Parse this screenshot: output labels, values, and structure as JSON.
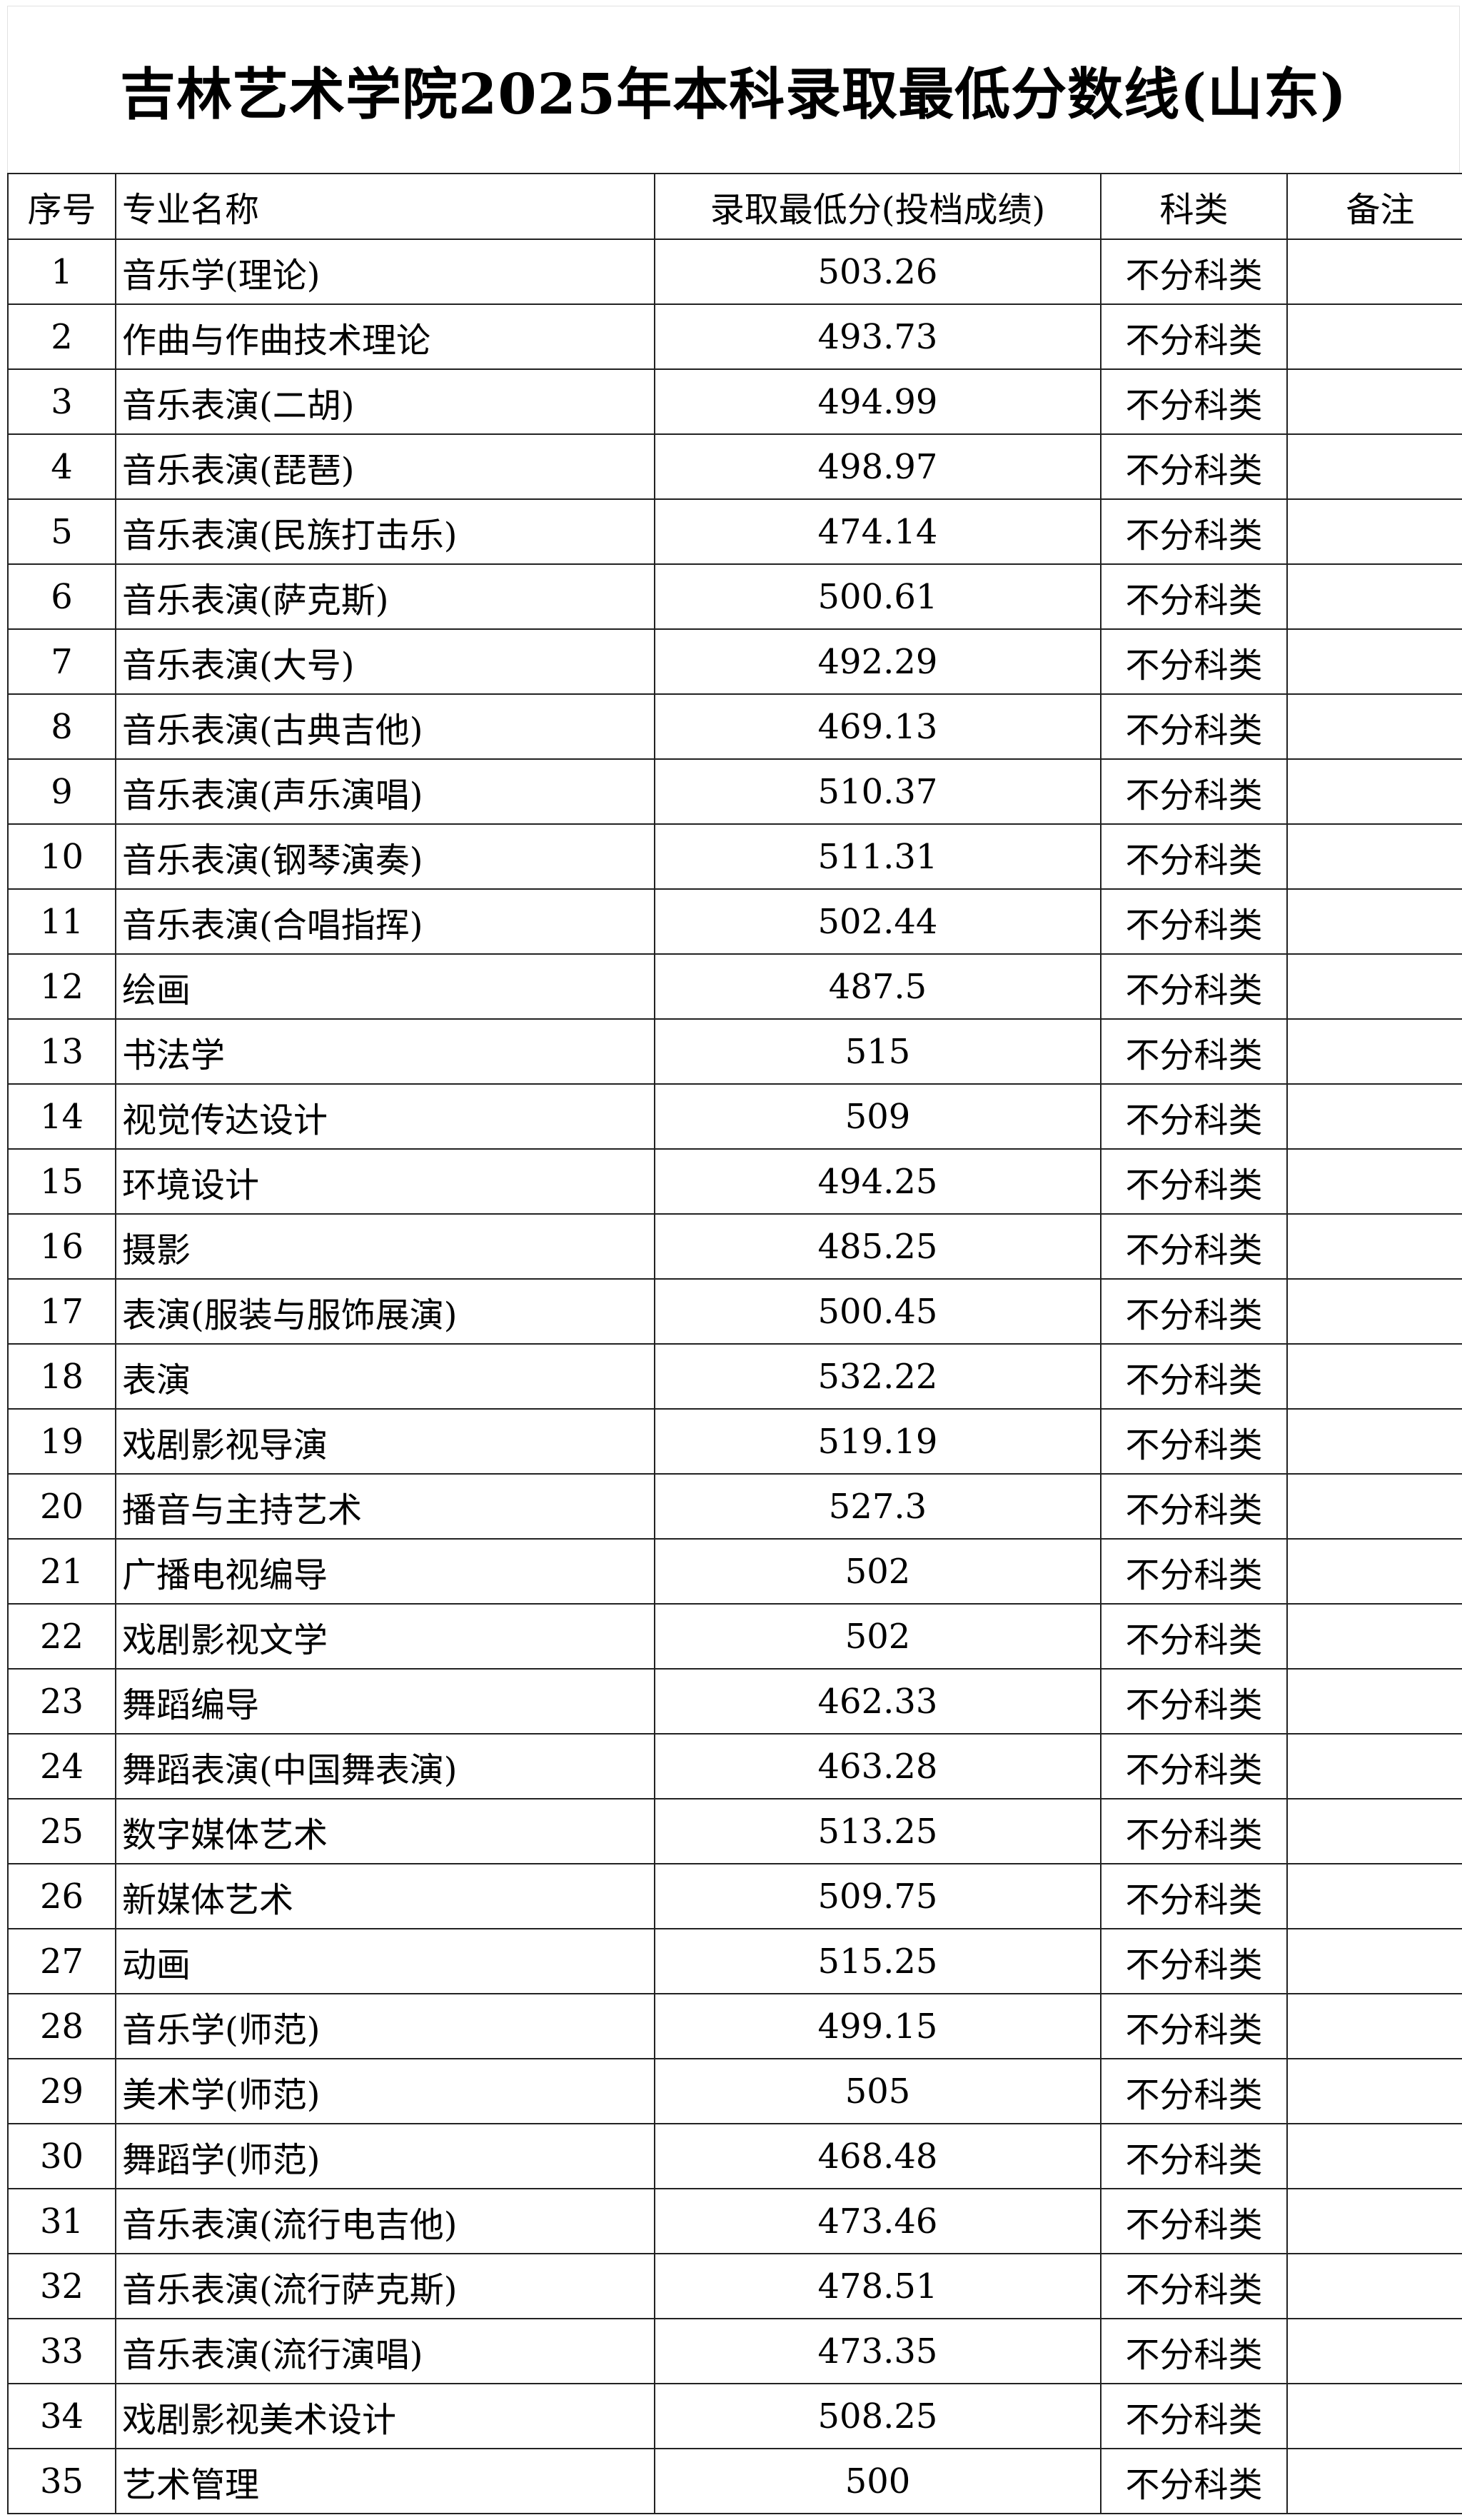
{
  "title": "吉林艺术学院2025年本科录取最低分数线(山东)",
  "table": {
    "headers": [
      "序号",
      "专业名称",
      "录取最低分(投档成绩)",
      "科类",
      "备注"
    ],
    "rows": [
      [
        "1",
        "音乐学(理论)",
        "503.26",
        "不分科类",
        ""
      ],
      [
        "2",
        "作曲与作曲技术理论",
        "493.73",
        "不分科类",
        ""
      ],
      [
        "3",
        "音乐表演(二胡)",
        "494.99",
        "不分科类",
        ""
      ],
      [
        "4",
        "音乐表演(琵琶)",
        "498.97",
        "不分科类",
        ""
      ],
      [
        "5",
        "音乐表演(民族打击乐)",
        "474.14",
        "不分科类",
        ""
      ],
      [
        "6",
        "音乐表演(萨克斯)",
        "500.61",
        "不分科类",
        ""
      ],
      [
        "7",
        "音乐表演(大号)",
        "492.29",
        "不分科类",
        ""
      ],
      [
        "8",
        "音乐表演(古典吉他)",
        "469.13",
        "不分科类",
        ""
      ],
      [
        "9",
        "音乐表演(声乐演唱)",
        "510.37",
        "不分科类",
        ""
      ],
      [
        "10",
        "音乐表演(钢琴演奏)",
        "511.31",
        "不分科类",
        ""
      ],
      [
        "11",
        "音乐表演(合唱指挥)",
        "502.44",
        "不分科类",
        ""
      ],
      [
        "12",
        "绘画",
        "487.5",
        "不分科类",
        ""
      ],
      [
        "13",
        "书法学",
        "515",
        "不分科类",
        ""
      ],
      [
        "14",
        "视觉传达设计",
        "509",
        "不分科类",
        ""
      ],
      [
        "15",
        "环境设计",
        "494.25",
        "不分科类",
        ""
      ],
      [
        "16",
        "摄影",
        "485.25",
        "不分科类",
        ""
      ],
      [
        "17",
        "表演(服装与服饰展演)",
        "500.45",
        "不分科类",
        ""
      ],
      [
        "18",
        "表演",
        "532.22",
        "不分科类",
        ""
      ],
      [
        "19",
        "戏剧影视导演",
        "519.19",
        "不分科类",
        ""
      ],
      [
        "20",
        "播音与主持艺术",
        "527.3",
        "不分科类",
        ""
      ],
      [
        "21",
        "广播电视编导",
        "502",
        "不分科类",
        ""
      ],
      [
        "22",
        "戏剧影视文学",
        "502",
        "不分科类",
        ""
      ],
      [
        "23",
        "舞蹈编导",
        "462.33",
        "不分科类",
        ""
      ],
      [
        "24",
        "舞蹈表演(中国舞表演)",
        "463.28",
        "不分科类",
        ""
      ],
      [
        "25",
        "数字媒体艺术",
        "513.25",
        "不分科类",
        ""
      ],
      [
        "26",
        "新媒体艺术",
        "509.75",
        "不分科类",
        ""
      ],
      [
        "27",
        "动画",
        "515.25",
        "不分科类",
        ""
      ],
      [
        "28",
        "音乐学(师范)",
        "499.15",
        "不分科类",
        ""
      ],
      [
        "29",
        "美术学(师范)",
        "505",
        "不分科类",
        ""
      ],
      [
        "30",
        "舞蹈学(师范)",
        "468.48",
        "不分科类",
        ""
      ],
      [
        "31",
        "音乐表演(流行电吉他)",
        "473.46",
        "不分科类",
        ""
      ],
      [
        "32",
        "音乐表演(流行萨克斯)",
        "478.51",
        "不分科类",
        ""
      ],
      [
        "33",
        "音乐表演(流行演唱)",
        "473.35",
        "不分科类",
        ""
      ],
      [
        "34",
        "戏剧影视美术设计",
        "508.25",
        "不分科类",
        ""
      ],
      [
        "35",
        "艺术管理",
        "500",
        "不分科类",
        ""
      ]
    ]
  }
}
